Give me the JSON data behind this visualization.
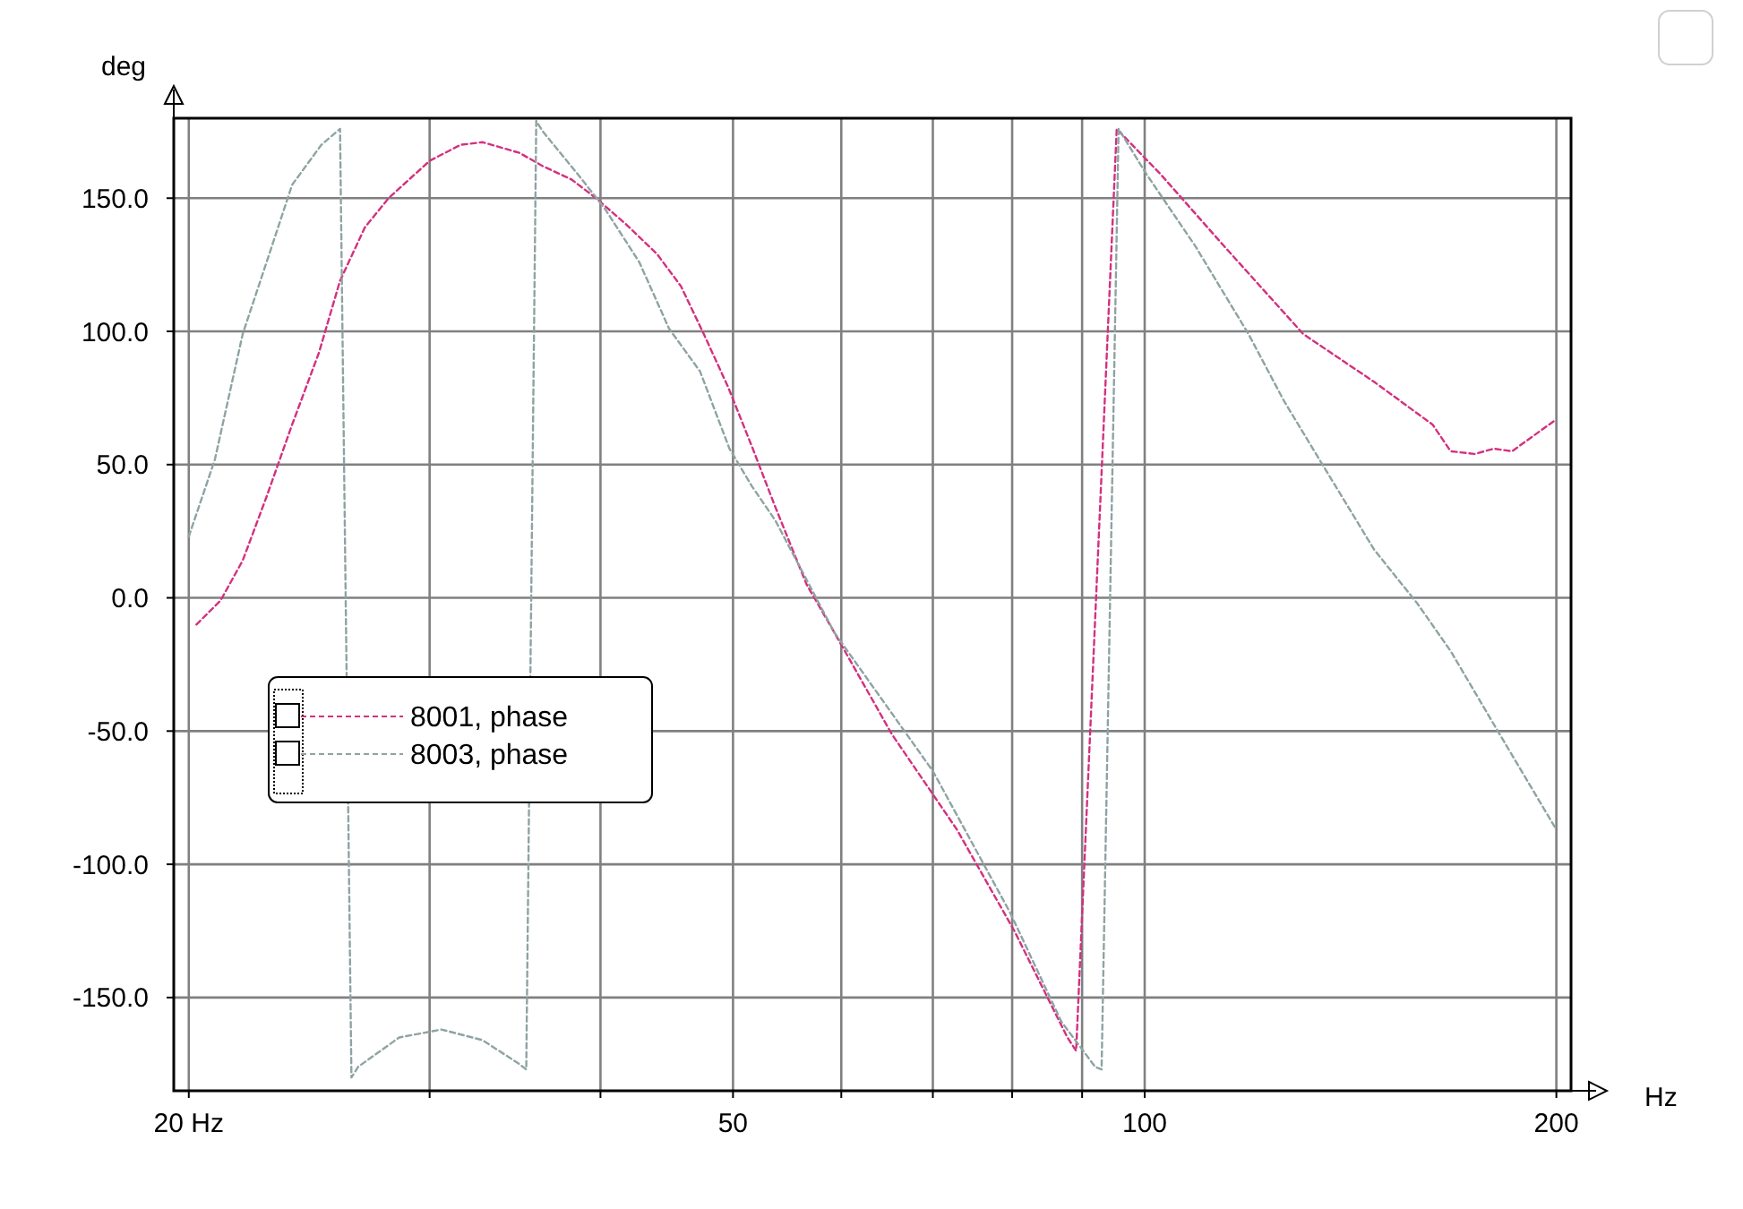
{
  "chart_data": {
    "type": "line",
    "xlabel": "Hz",
    "ylabel": "deg",
    "log": "x",
    "grid": true,
    "legend": "left",
    "line_style": "dashed",
    "xlim": [
      19.5,
      205
    ],
    "ylim": [
      -185,
      180
    ],
    "xticks": [
      {
        "value": 20,
        "label": "20 Hz"
      },
      {
        "value": 30,
        "label": null
      },
      {
        "value": 40,
        "label": null
      },
      50,
      {
        "value": 60,
        "label": null
      },
      {
        "value": 70,
        "label": null
      },
      {
        "value": 80,
        "label": null
      },
      {
        "value": 90,
        "label": null
      },
      100,
      200
    ],
    "yticks": [
      {
        "value": -150,
        "label": "-150.0"
      },
      {
        "value": -100,
        "label": "-100.0"
      },
      {
        "value": -50,
        "label": "-50.0"
      },
      {
        "value": 0,
        "label": "0.0"
      },
      {
        "value": 50,
        "label": "50.0"
      },
      {
        "value": 100,
        "label": "100.0"
      },
      {
        "value": 150,
        "label": "150.0"
      }
    ],
    "series": [
      {
        "name": "8001, phase",
        "color": "#d4307f",
        "x": [
          20.26,
          21.1,
          21.9,
          22.8,
          23.8,
          24.9,
          25.8,
          26.9,
          28.0,
          30,
          31.6,
          32.8,
          34.9,
          36.3,
          38.1,
          39.7,
          41.8,
          44.0,
          45.8,
          47.6,
          49.6,
          51.6,
          53.7,
          56.6,
          59.3,
          65.3,
          72.9,
          80.3,
          87.8,
          89.1,
          95.4,
          102.7,
          114.3,
          130.6,
          147.2,
          162.4,
          167.4,
          174.4,
          180,
          185.6,
          200
        ],
        "values": [
          -10,
          -1,
          14,
          38,
          65,
          92,
          119,
          139,
          150,
          164,
          170,
          171,
          167,
          162,
          157,
          150,
          140,
          129,
          117,
          99,
          79,
          57,
          34,
          5,
          -13,
          -51,
          -87,
          -125,
          -165,
          -170,
          176,
          159,
          132,
          99,
          81,
          65,
          55,
          54,
          56,
          55,
          67
        ]
      },
      {
        "name": "8003, phase",
        "color": "#8fa3a3",
        "x": [
          20,
          20.9,
          21.9,
          22.8,
          23.8,
          25.0,
          25.8,
          26.3,
          26.6,
          28.5,
          30.6,
          32.8,
          34.9,
          35.3,
          35.9,
          36.3,
          38.5,
          40.3,
          42.7,
          44.9,
          47.3,
          49.7,
          51.6,
          53.7,
          59.3,
          70,
          79.7,
          86.9,
          92,
          93,
          95.7,
          100.3,
          108.9,
          119.1,
          126.4,
          134.9,
          147.2,
          158.2,
          167.4,
          181.7,
          200
        ],
        "values": [
          23,
          52,
          99,
          126,
          155,
          170,
          176,
          -180,
          -176,
          -165,
          -162,
          -166,
          -175,
          -177,
          179,
          175,
          159,
          146,
          126,
          101,
          85,
          56,
          42,
          29,
          -13,
          -65,
          -118,
          -159,
          -176,
          -177,
          176,
          159,
          132,
          99,
          74,
          50,
          18,
          -2,
          -20,
          -51,
          -87
        ]
      }
    ]
  }
}
